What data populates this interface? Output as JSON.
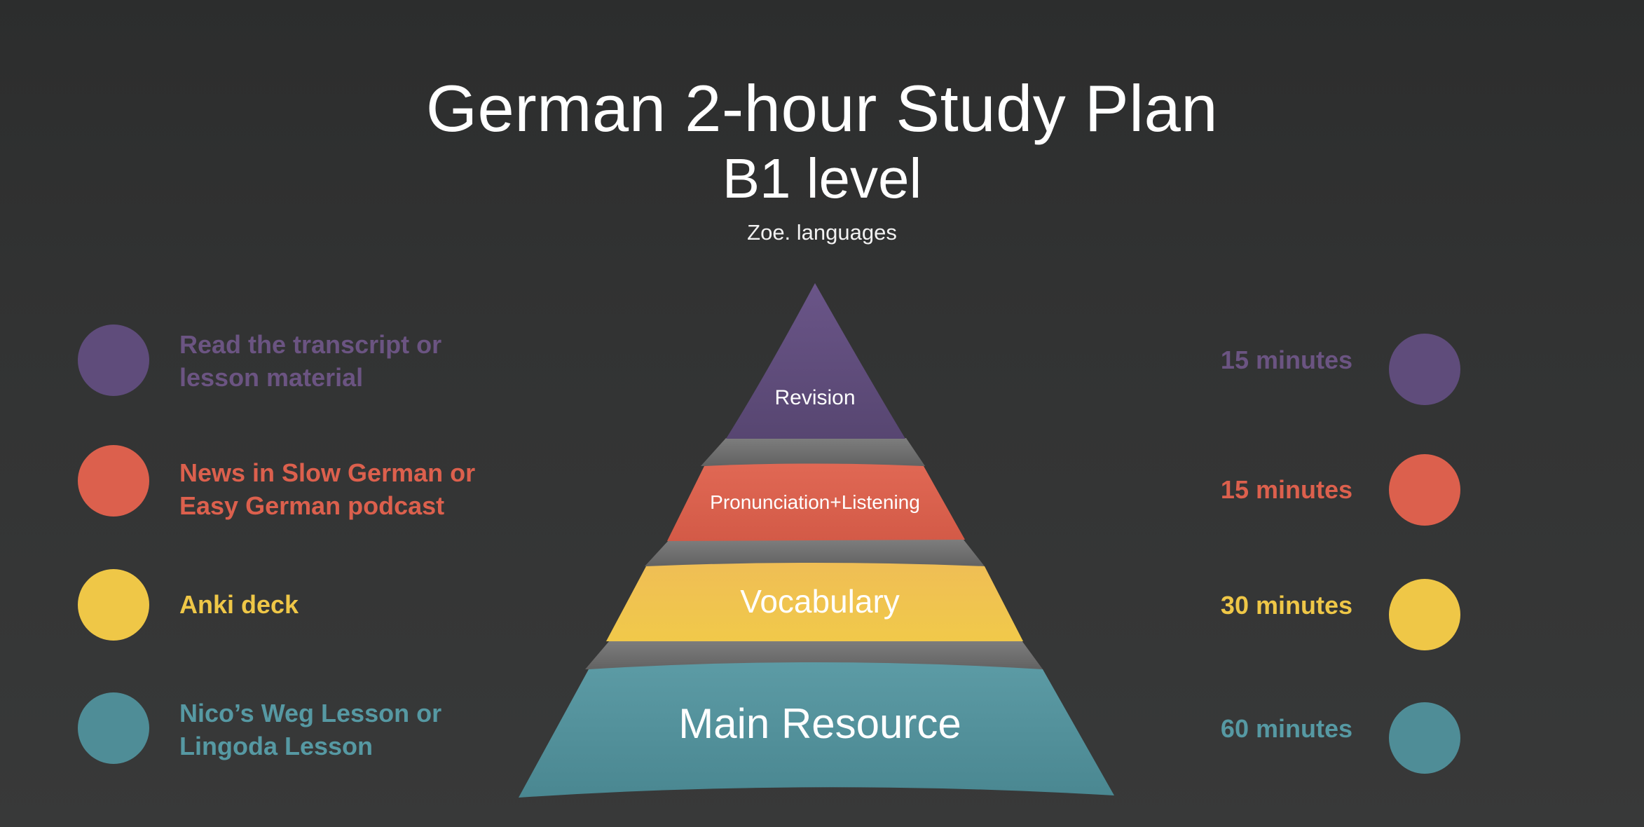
{
  "title": "German 2-hour Study Plan",
  "subtitle": "B1 level",
  "author": "Zoe. languages",
  "layers": [
    {
      "name": "Revision",
      "activity_lines": [
        "Read the transcript or",
        "lesson material"
      ],
      "time": "15 minutes",
      "color": "#5f4c7b"
    },
    {
      "name": "Pronunciation+Listening",
      "activity_lines": [
        "News in Slow German or",
        "Easy German podcast"
      ],
      "time": "15 minutes",
      "color": "#dc604d"
    },
    {
      "name": "Vocabulary",
      "activity_lines": [
        "Anki deck"
      ],
      "time": "30 minutes",
      "color": "#efc747"
    },
    {
      "name": "Main Resource",
      "activity_lines": [
        "Nico’s Weg Lesson or",
        "Lingoda Lesson"
      ],
      "time": "60 minutes",
      "color": "#4f8d97"
    }
  ]
}
